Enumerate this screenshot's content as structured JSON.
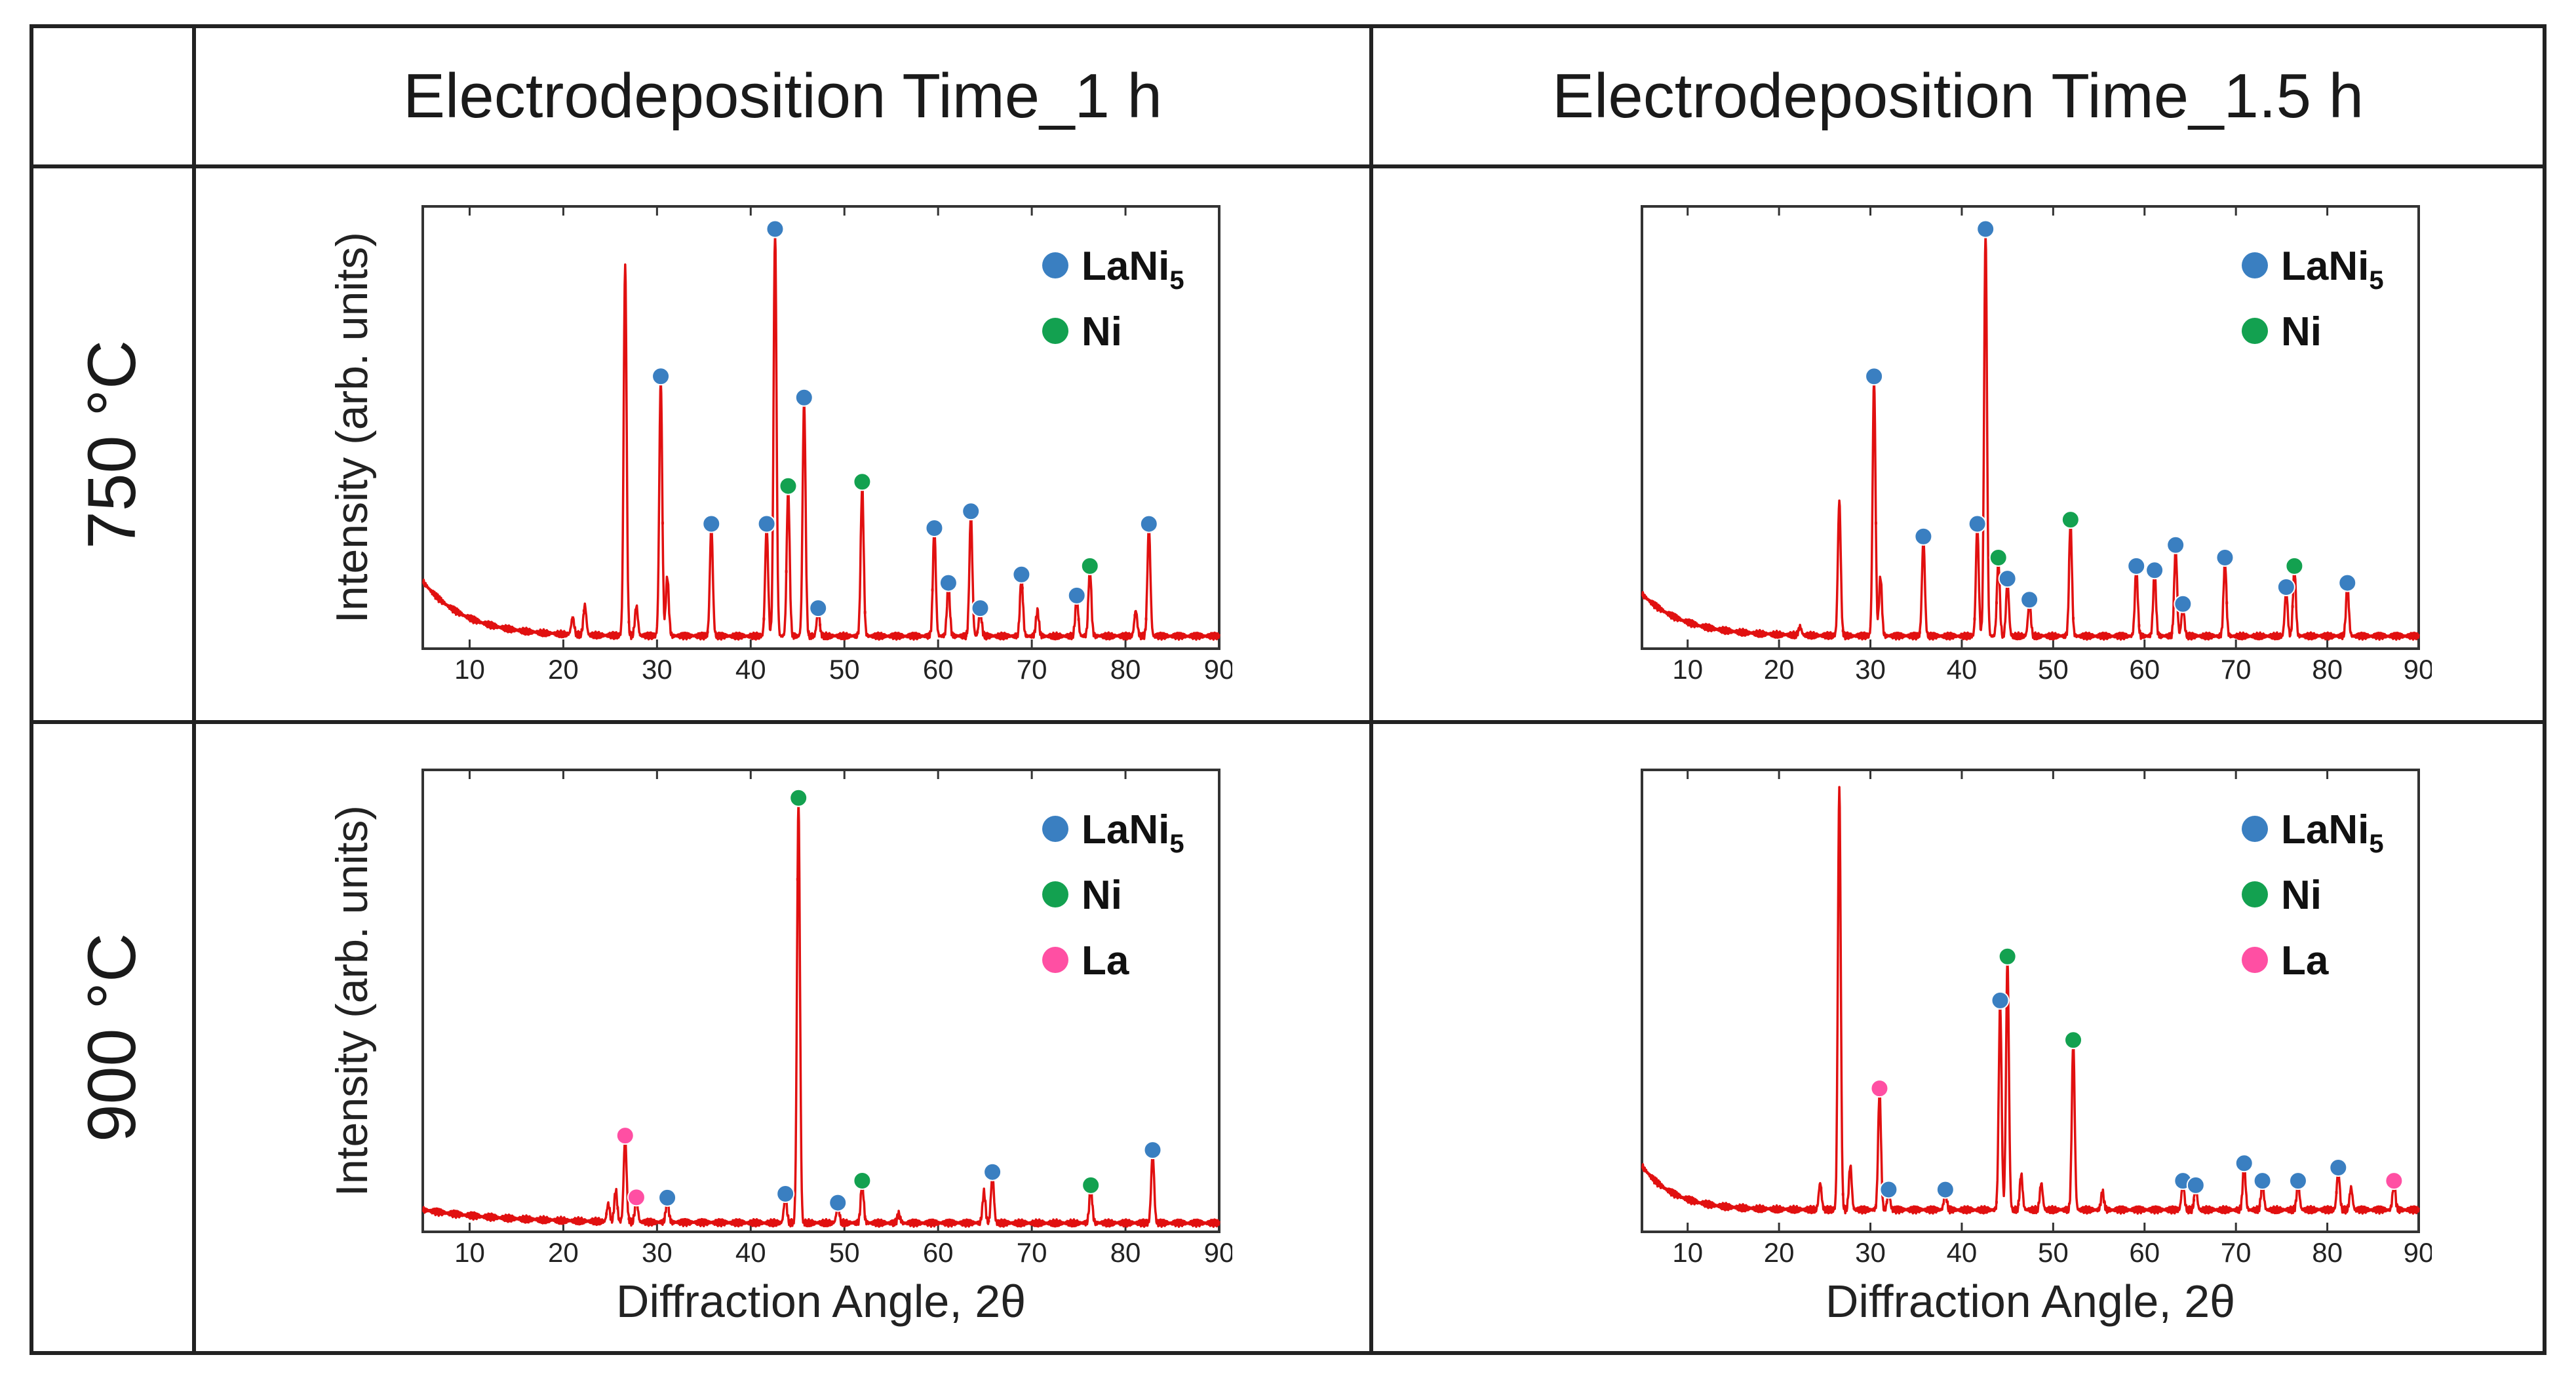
{
  "table": {
    "col_headers": [
      "Electrodeposition Time_1 h",
      "Electrodeposition Time_1.5 h"
    ],
    "row_headers": [
      "750 °C",
      "900 °C"
    ]
  },
  "colors": {
    "line": "#e11010",
    "LaNi5": "#3a7fc1",
    "Ni": "#13a150",
    "La": "#ff4fa3"
  },
  "chart_data": [
    {
      "type": "line",
      "title": "Electrodeposition Time_1 h, 750 °C",
      "xlabel": "",
      "ylabel": "Intensity (arb. units)",
      "xlim": [
        5,
        90
      ],
      "ylim": [
        0,
        105
      ],
      "xticks": [
        10,
        20,
        30,
        40,
        50,
        60,
        70,
        80,
        90
      ],
      "baseline": {
        "start": 16,
        "decay": 4.5,
        "floor": 3
      },
      "legend": [
        {
          "label": "LaNi",
          "sub": "5",
          "phase": "LaNi5"
        },
        {
          "label": "Ni",
          "sub": "",
          "phase": "Ni"
        }
      ],
      "peaks": [
        {
          "x": 21,
          "h": 4
        },
        {
          "x": 22.3,
          "h": 7
        },
        {
          "x": 26.6,
          "h": 88,
          "marker": false
        },
        {
          "x": 27.8,
          "h": 7
        },
        {
          "x": 30.4,
          "h": 61,
          "marker": "LaNi5"
        },
        {
          "x": 31.1,
          "h": 14
        },
        {
          "x": 35.8,
          "h": 26,
          "marker": "LaNi5"
        },
        {
          "x": 41.7,
          "h": 26,
          "marker": "LaNi5"
        },
        {
          "x": 42.6,
          "h": 96,
          "marker": "LaNi5"
        },
        {
          "x": 44,
          "h": 35,
          "marker": "Ni"
        },
        {
          "x": 45.7,
          "h": 56,
          "marker": "LaNi5"
        },
        {
          "x": 47.2,
          "h": 6,
          "marker": "LaNi5"
        },
        {
          "x": 51.9,
          "h": 36,
          "marker": "Ni"
        },
        {
          "x": 59.6,
          "h": 25,
          "marker": "LaNi5"
        },
        {
          "x": 61.1,
          "h": 12,
          "marker": "LaNi5"
        },
        {
          "x": 63.5,
          "h": 29,
          "marker": "LaNi5"
        },
        {
          "x": 64.5,
          "h": 6,
          "marker": "LaNi5"
        },
        {
          "x": 68.9,
          "h": 14,
          "marker": "LaNi5"
        },
        {
          "x": 70.6,
          "h": 6
        },
        {
          "x": 74.8,
          "h": 9,
          "marker": "LaNi5"
        },
        {
          "x": 76.2,
          "h": 16,
          "marker": "Ni"
        },
        {
          "x": 81.1,
          "h": 6
        },
        {
          "x": 82.5,
          "h": 26,
          "marker": "LaNi5"
        }
      ]
    },
    {
      "type": "line",
      "title": "Electrodeposition Time_1.5 h, 750 °C",
      "xlabel": "",
      "ylabel": "",
      "xlim": [
        5,
        90
      ],
      "ylim": [
        0,
        105
      ],
      "xticks": [
        10,
        20,
        30,
        40,
        50,
        60,
        70,
        80,
        90
      ],
      "baseline": {
        "start": 13,
        "decay": 4.5,
        "floor": 3
      },
      "legend": [
        {
          "label": "LaNi",
          "sub": "5",
          "phase": "LaNi5"
        },
        {
          "label": "Ni",
          "sub": "",
          "phase": "Ni"
        }
      ],
      "peaks": [
        {
          "x": 22.3,
          "h": 2
        },
        {
          "x": 26.6,
          "h": 32,
          "marker": false
        },
        {
          "x": 30.4,
          "h": 61,
          "marker": "LaNi5"
        },
        {
          "x": 31.1,
          "h": 14
        },
        {
          "x": 35.8,
          "h": 23,
          "marker": "LaNi5"
        },
        {
          "x": 41.7,
          "h": 26,
          "marker": "LaNi5"
        },
        {
          "x": 42.6,
          "h": 96,
          "marker": "LaNi5"
        },
        {
          "x": 44,
          "h": 18,
          "marker": "Ni"
        },
        {
          "x": 45,
          "h": 13,
          "marker": "LaNi5"
        },
        {
          "x": 47.4,
          "h": 8,
          "marker": "LaNi5"
        },
        {
          "x": 51.9,
          "h": 27,
          "marker": "Ni"
        },
        {
          "x": 59.1,
          "h": 16,
          "marker": "LaNi5"
        },
        {
          "x": 61.1,
          "h": 15,
          "marker": "LaNi5"
        },
        {
          "x": 63.4,
          "h": 21,
          "marker": "LaNi5"
        },
        {
          "x": 64.2,
          "h": 7,
          "marker": "LaNi5"
        },
        {
          "x": 68.8,
          "h": 18,
          "marker": "LaNi5"
        },
        {
          "x": 75.5,
          "h": 11,
          "marker": "LaNi5"
        },
        {
          "x": 76.4,
          "h": 16,
          "marker": "Ni"
        },
        {
          "x": 82.2,
          "h": 12,
          "marker": "LaNi5"
        }
      ]
    },
    {
      "type": "line",
      "title": "Electrodeposition Time_1 h, 900 °C",
      "xlabel": "Diffraction Angle, 2θ",
      "ylabel": "Intensity (arb. units)",
      "xlim": [
        5,
        90
      ],
      "ylim": [
        0,
        105
      ],
      "xticks": [
        10,
        20,
        30,
        40,
        50,
        60,
        70,
        80,
        90
      ],
      "baseline": {
        "start": 5,
        "decay": 9,
        "floor": 2
      },
      "legend": [
        {
          "label": "LaNi",
          "sub": "5",
          "phase": "LaNi5"
        },
        {
          "label": "Ni",
          "sub": "",
          "phase": "Ni"
        },
        {
          "label": "La",
          "sub": "",
          "phase": "La"
        }
      ],
      "peaks": [
        {
          "x": 24.8,
          "h": 4
        },
        {
          "x": 25.6,
          "h": 7
        },
        {
          "x": 26.6,
          "h": 19,
          "marker": "La"
        },
        {
          "x": 27.8,
          "h": 5,
          "marker": "La"
        },
        {
          "x": 31.1,
          "h": 5,
          "marker": "LaNi5"
        },
        {
          "x": 43.7,
          "h": 6,
          "marker": "LaNi5"
        },
        {
          "x": 45.1,
          "h": 96,
          "marker": "Ni"
        },
        {
          "x": 49.3,
          "h": 4,
          "marker": "LaNi5"
        },
        {
          "x": 51.9,
          "h": 9,
          "marker": "Ni"
        },
        {
          "x": 55.8,
          "h": 2
        },
        {
          "x": 64.9,
          "h": 7
        },
        {
          "x": 65.8,
          "h": 11,
          "marker": "LaNi5"
        },
        {
          "x": 76.3,
          "h": 8,
          "marker": "Ni"
        },
        {
          "x": 82.9,
          "h": 16,
          "marker": "LaNi5"
        }
      ]
    },
    {
      "type": "line",
      "title": "Electrodeposition Time_1.5 h, 900 °C",
      "xlabel": "Diffraction Angle, 2θ",
      "ylabel": "",
      "xlim": [
        5,
        90
      ],
      "ylim": [
        0,
        105
      ],
      "xticks": [
        10,
        20,
        30,
        40,
        50,
        60,
        70,
        80,
        90
      ],
      "baseline": {
        "start": 15,
        "decay": 3.5,
        "floor": 5
      },
      "legend": [
        {
          "label": "LaNi",
          "sub": "5",
          "phase": "LaNi5"
        },
        {
          "label": "Ni",
          "sub": "",
          "phase": "Ni"
        },
        {
          "label": "La",
          "sub": "",
          "phase": "La"
        }
      ],
      "peaks": [
        {
          "x": 24.5,
          "h": 6
        },
        {
          "x": 26.6,
          "h": 96,
          "marker": false
        },
        {
          "x": 27.8,
          "h": 10
        },
        {
          "x": 31,
          "h": 27,
          "marker": "La"
        },
        {
          "x": 32,
          "h": 4,
          "marker": "LaNi5"
        },
        {
          "x": 38.2,
          "h": 4,
          "marker": "LaNi5"
        },
        {
          "x": 44.2,
          "h": 47,
          "marker": "LaNi5"
        },
        {
          "x": 45,
          "h": 57,
          "marker": "Ni"
        },
        {
          "x": 46.5,
          "h": 8
        },
        {
          "x": 48.7,
          "h": 6
        },
        {
          "x": 52.2,
          "h": 38,
          "marker": "Ni"
        },
        {
          "x": 55.4,
          "h": 4
        },
        {
          "x": 64.2,
          "h": 6,
          "marker": "LaNi5"
        },
        {
          "x": 65.6,
          "h": 5,
          "marker": "LaNi5"
        },
        {
          "x": 70.9,
          "h": 10,
          "marker": "LaNi5"
        },
        {
          "x": 72.9,
          "h": 6,
          "marker": "LaNi5"
        },
        {
          "x": 76.8,
          "h": 6,
          "marker": "LaNi5"
        },
        {
          "x": 81.2,
          "h": 9,
          "marker": "LaNi5"
        },
        {
          "x": 82.6,
          "h": 5
        },
        {
          "x": 87.3,
          "h": 6,
          "marker": "La"
        }
      ]
    }
  ]
}
